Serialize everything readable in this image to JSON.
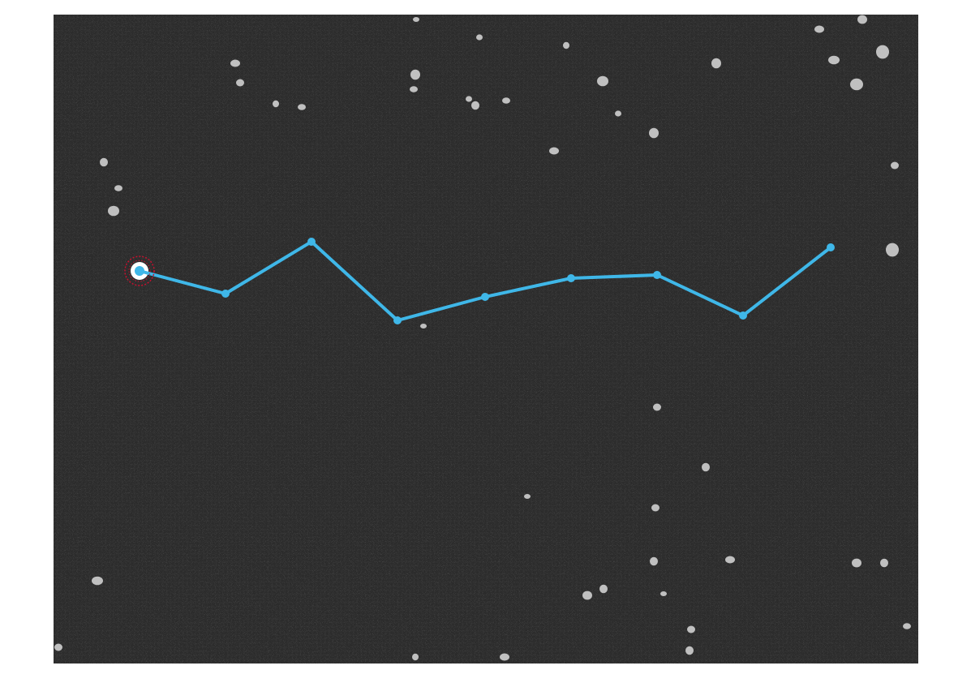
{
  "figure": {
    "background_color": "#2b2b2b",
    "noise_color_light": "#9a9a9a",
    "noise_color_dark": "#1a1a1a",
    "blob_color": "#d9d9d9",
    "track_color": "#3fb7e8",
    "marker_ring_color": "#c8102e",
    "start_marker": "circle-start-marker",
    "track_point_count": 9
  }
}
